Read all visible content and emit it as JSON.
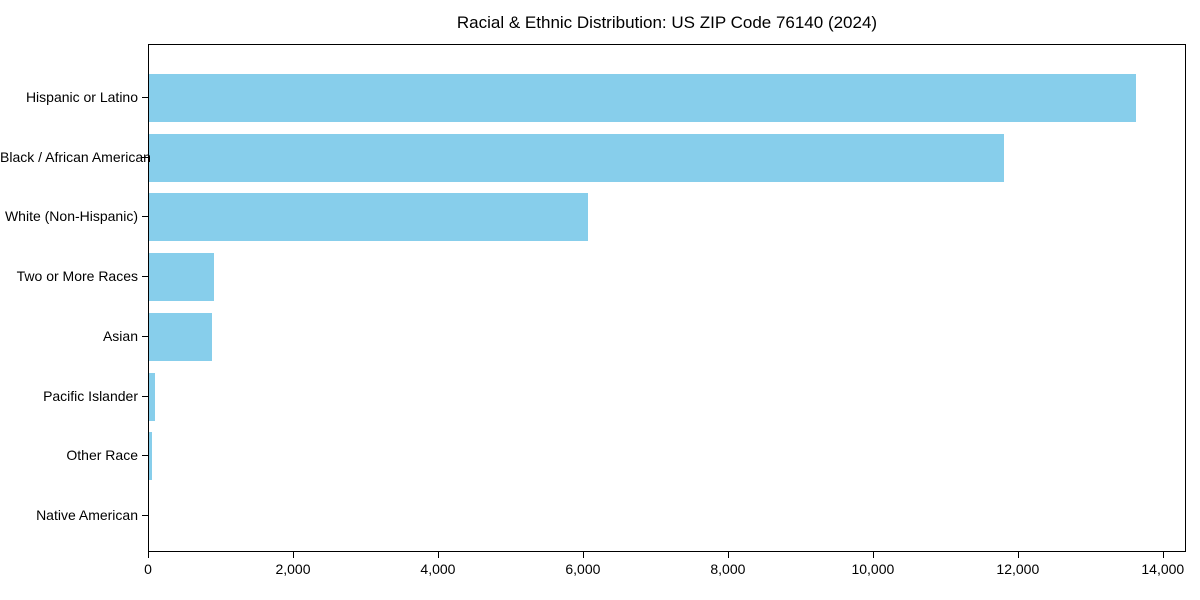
{
  "figure": {
    "background": "#ffffff",
    "text_color": "#000000"
  },
  "chart_data": {
    "type": "bar",
    "orientation": "horizontal",
    "title": "Racial & Ethnic Distribution: US ZIP Code 76140 (2024)",
    "xlabel": "",
    "ylabel": "",
    "categories": [
      "Hispanic or Latino",
      "Black / African American",
      "White (Non-Hispanic)",
      "Two or More Races",
      "Asian",
      "Pacific Islander",
      "Other Race",
      "Native American"
    ],
    "values": [
      13620,
      11790,
      6050,
      900,
      870,
      85,
      40,
      0
    ],
    "xlim": [
      0,
      14320
    ],
    "x_ticks": [
      0,
      2000,
      4000,
      6000,
      8000,
      10000,
      12000,
      14000
    ],
    "x_tick_labels": [
      "0",
      "2,000",
      "4,000",
      "6,000",
      "8,000",
      "10,000",
      "12,000",
      "14,000"
    ],
    "bar_color": "#87CEEB",
    "axis_color": "#000000",
    "grid": false,
    "legend": false
  }
}
